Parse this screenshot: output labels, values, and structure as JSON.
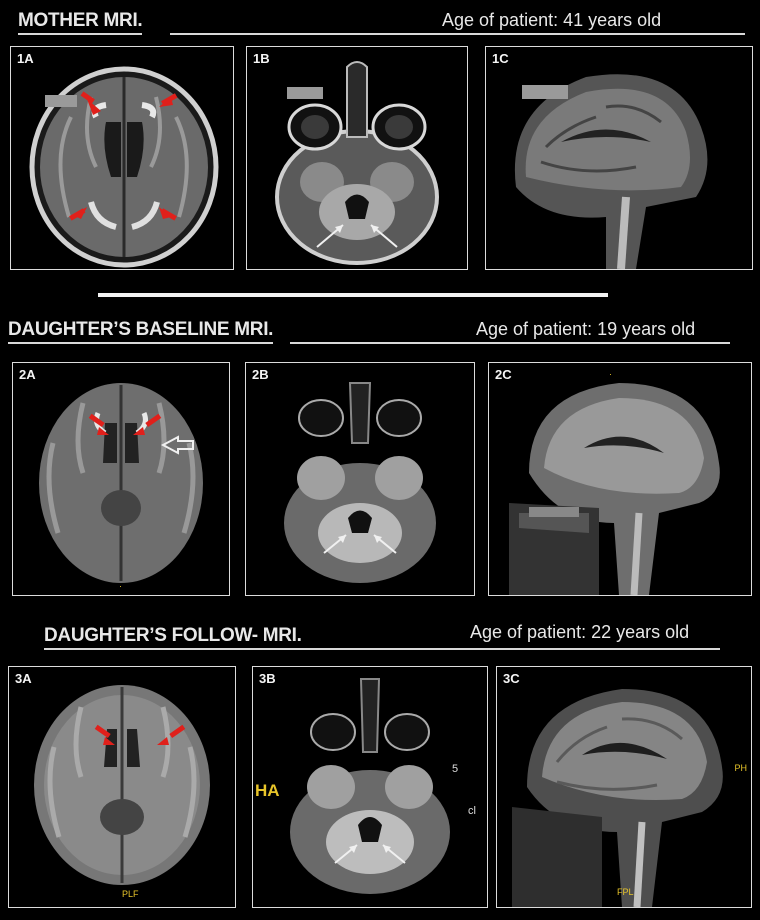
{
  "sections": [
    {
      "title": "MOTHER MRI.",
      "age": "Age of patient: 41 years old"
    },
    {
      "title": "DAUGHTER’S BASELINE MRI.",
      "age": "Age of patient: 19 years old"
    },
    {
      "title": "DAUGHTER’S FOLLOW- MRI.",
      "age": "Age of patient: 22 years old"
    }
  ],
  "panels": {
    "p1A": "1A",
    "p1B": "1B",
    "p1C": "1C",
    "p2A": "2A",
    "p2B": "2B",
    "p2C": "2C",
    "p3A": "3A",
    "p3B": "3B",
    "p3C": "3C"
  },
  "markers": {
    "plf": "PLF",
    "ha": "HA",
    "ph": "PH",
    "fpl": "FPL",
    "five": "5",
    "cl": "cl"
  },
  "colors": {
    "red_arrow": "#e0201b",
    "white_arrow": "#f0f0f0",
    "marker_yellow": "#e8c52a",
    "background": "#000000"
  }
}
